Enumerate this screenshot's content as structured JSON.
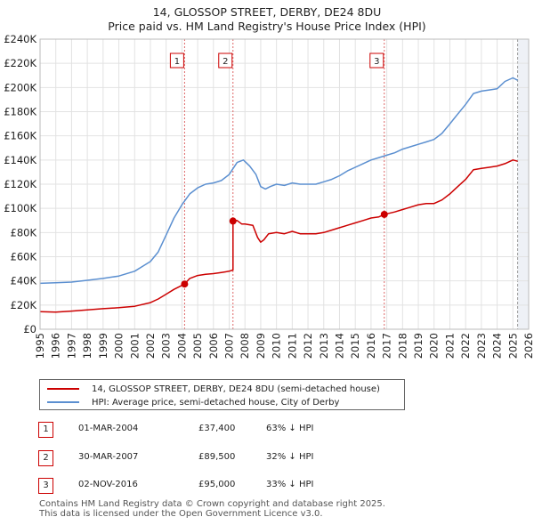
{
  "title_line1": "14, GLOSSOP STREET, DERBY, DE24 8DU",
  "title_line2": "Price paid vs. HM Land Registry's House Price Index (HPI)",
  "chart_data": {
    "type": "line",
    "title": "14, GLOSSOP STREET, DERBY, DE24 8DU — Price paid vs. HM Land Registry's House Price Index (HPI)",
    "xlim": [
      1995,
      2026
    ],
    "ylim": [
      0,
      240000
    ],
    "x_ticks": [
      1995,
      1996,
      1997,
      1998,
      1999,
      2000,
      2001,
      2002,
      2003,
      2004,
      2005,
      2006,
      2007,
      2008,
      2009,
      2010,
      2011,
      2012,
      2013,
      2014,
      2015,
      2016,
      2017,
      2018,
      2019,
      2020,
      2021,
      2022,
      2023,
      2024,
      2025,
      2026
    ],
    "y_ticks": [
      0,
      20000,
      40000,
      60000,
      80000,
      100000,
      120000,
      140000,
      160000,
      180000,
      200000,
      220000,
      240000
    ],
    "y_tick_labels": [
      "£0",
      "£20K",
      "£40K",
      "£60K",
      "£80K",
      "£100K",
      "£120K",
      "£140K",
      "£160K",
      "£180K",
      "£200K",
      "£220K",
      "£240K"
    ],
    "grid": true,
    "future_shade_from": 2025.3,
    "series": [
      {
        "name": "14, GLOSSOP STREET, DERBY, DE24 8DU (semi-detached house)",
        "color": "#cc0000",
        "x": [
          1995.0,
          1996.0,
          1997.0,
          1998.0,
          1999.0,
          2000.0,
          2001.0,
          2002.0,
          2002.5,
          2003.0,
          2003.5,
          2004.17,
          2004.5,
          2005.0,
          2005.5,
          2006.0,
          2006.5,
          2007.0,
          2007.24,
          2007.24,
          2007.5,
          2007.8,
          2008.0,
          2008.5,
          2008.8,
          2009.0,
          2009.2,
          2009.5,
          2010.0,
          2010.5,
          2011.0,
          2011.5,
          2012.0,
          2012.5,
          2013.0,
          2013.5,
          2014.0,
          2014.5,
          2015.0,
          2015.5,
          2016.0,
          2016.5,
          2016.84,
          2017.0,
          2017.5,
          2018.0,
          2018.5,
          2019.0,
          2019.5,
          2020.0,
          2020.5,
          2021.0,
          2021.5,
          2022.0,
          2022.5,
          2023.0,
          2023.5,
          2024.0,
          2024.5,
          2025.0,
          2025.3
        ],
        "y": [
          14500,
          14200,
          15000,
          16000,
          17000,
          17800,
          19000,
          22000,
          25000,
          29000,
          33000,
          37400,
          42000,
          44500,
          45500,
          46000,
          47000,
          48000,
          49000,
          89500,
          90000,
          87000,
          87000,
          86000,
          76000,
          72000,
          74000,
          79000,
          80000,
          79000,
          81000,
          79000,
          79000,
          79000,
          80000,
          82000,
          84000,
          86000,
          88000,
          90000,
          92000,
          93000,
          95000,
          95500,
          97000,
          99000,
          101000,
          103000,
          104000,
          104000,
          107000,
          112000,
          118000,
          124000,
          132000,
          133000,
          134000,
          135000,
          137000,
          140000,
          139000
        ]
      },
      {
        "name": "HPI: Average price, semi-detached house, City of Derby",
        "color": "#5b8fd0",
        "x": [
          1995.0,
          1996.0,
          1997.0,
          1998.0,
          1999.0,
          2000.0,
          2001.0,
          2001.5,
          2002.0,
          2002.5,
          2003.0,
          2003.5,
          2004.0,
          2004.5,
          2005.0,
          2005.5,
          2006.0,
          2006.5,
          2007.0,
          2007.5,
          2007.9,
          2008.3,
          2008.7,
          2009.0,
          2009.3,
          2009.6,
          2010.0,
          2010.5,
          2011.0,
          2011.5,
          2012.0,
          2012.5,
          2013.0,
          2013.5,
          2014.0,
          2014.5,
          2015.0,
          2015.5,
          2016.0,
          2016.5,
          2017.0,
          2017.5,
          2018.0,
          2018.5,
          2019.0,
          2019.5,
          2020.0,
          2020.5,
          2021.0,
          2021.5,
          2022.0,
          2022.5,
          2023.0,
          2023.5,
          2024.0,
          2024.5,
          2025.0,
          2025.3
        ],
        "y": [
          38000,
          38500,
          39000,
          40500,
          42000,
          44000,
          48000,
          52000,
          56000,
          64000,
          78000,
          92000,
          103000,
          112000,
          117000,
          120000,
          121000,
          123000,
          128000,
          138000,
          140000,
          135000,
          128000,
          118000,
          116000,
          118000,
          120000,
          119000,
          121000,
          120000,
          120000,
          120000,
          122000,
          124000,
          127000,
          131000,
          134000,
          137000,
          140000,
          142000,
          144000,
          146000,
          149000,
          151000,
          153000,
          155000,
          157000,
          162000,
          170000,
          178000,
          186000,
          195000,
          197000,
          198000,
          199000,
          205000,
          208000,
          206000
        ]
      }
    ],
    "transactions": [
      {
        "label": "1",
        "date": "01-MAR-2004",
        "price": "£37,400",
        "hpi": "63% ↓ HPI",
        "x": 2004.17,
        "y": 37400
      },
      {
        "label": "2",
        "date": "30-MAR-2007",
        "price": "£89,500",
        "hpi": "32% ↓ HPI",
        "x": 2007.24,
        "y": 89500
      },
      {
        "label": "3",
        "date": "02-NOV-2016",
        "price": "£95,000",
        "hpi": "33% ↓ HPI",
        "x": 2016.84,
        "y": 95000
      }
    ]
  },
  "legend": {
    "series1": "14, GLOSSOP STREET, DERBY, DE24 8DU (semi-detached house)",
    "series2": "HPI: Average price, semi-detached house, City of Derby"
  },
  "footer": {
    "line1": "Contains HM Land Registry data © Crown copyright and database right 2025.",
    "line2": "This data is licensed under the Open Government Licence v3.0."
  }
}
